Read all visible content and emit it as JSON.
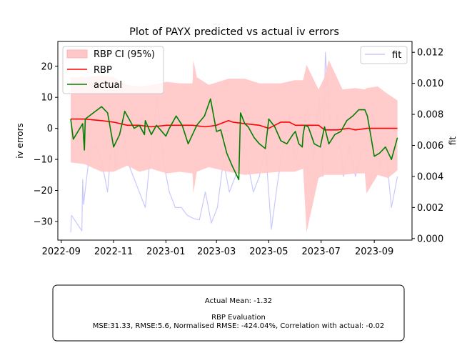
{
  "chart_data": {
    "type": "line",
    "title": "Plot of PAYX predicted vs actual iv errors",
    "xlabel": "",
    "ylabel": "iv errors",
    "y2label": "fit",
    "ylim": [
      -36,
      28
    ],
    "y2lim": [
      -0.0001,
      0.0127
    ],
    "xlim": [
      "2022-08-28",
      "2023-10-15"
    ],
    "x_ticks": [
      "2022-09",
      "2022-11",
      "2023-01",
      "2023-03",
      "2023-05",
      "2023-07",
      "2023-09"
    ],
    "x_tick_dates": [
      "2022-09-01",
      "2022-11-01",
      "2023-01-01",
      "2023-03-01",
      "2023-05-01",
      "2023-07-01",
      "2023-09-01"
    ],
    "y_ticks": [
      -30,
      -20,
      -10,
      0,
      10,
      20
    ],
    "y_tick_labels": [
      "−30",
      "−20",
      "−10",
      "0",
      "10",
      "20"
    ],
    "y2_ticks": [
      0.0,
      0.002,
      0.004,
      0.006,
      0.008,
      0.01,
      0.012
    ],
    "y2_tick_labels": [
      "0.000",
      "0.002",
      "0.004",
      "0.006",
      "0.008",
      "0.010",
      "0.012"
    ],
    "grid": false,
    "legend_left": {
      "placement": "top-left",
      "entries": [
        {
          "label": "RBP CI (95%)",
          "color": "#ffc8c8"
        },
        {
          "label": "RBP",
          "color": "#ff0000"
        },
        {
          "label": "actual",
          "color": "#008000"
        }
      ]
    },
    "legend_right": {
      "placement": "top-right",
      "entries": [
        {
          "label": "fit",
          "color": "#c8c8ff"
        }
      ]
    },
    "series": [
      {
        "name": "RBP CI (95%)",
        "kind": "band",
        "color": "#ffc8c8",
        "x": [
          "2022-09-12",
          "2022-09-28",
          "2022-10-18",
          "2022-11-01",
          "2022-11-17",
          "2022-12-01",
          "2022-12-15",
          "2023-01-02",
          "2023-01-17",
          "2023-02-01",
          "2023-02-02",
          "2023-02-06",
          "2023-02-20",
          "2023-03-15",
          "2023-04-03",
          "2023-04-20",
          "2023-05-15",
          "2023-05-31",
          "2023-06-10",
          "2023-06-14",
          "2023-06-28",
          "2023-07-05",
          "2023-07-10",
          "2023-07-26",
          "2023-08-10",
          "2023-08-21",
          "2023-08-23",
          "2023-09-05",
          "2023-09-17",
          "2023-09-28"
        ],
        "upper": [
          16.3,
          16.5,
          17.0,
          16.5,
          14.0,
          13.5,
          14.0,
          15.0,
          14.5,
          14.5,
          22.0,
          16.5,
          14.0,
          16.0,
          16.0,
          14.5,
          14.5,
          15.5,
          15.5,
          20.5,
          12.5,
          16.5,
          22.0,
          12.5,
          13.0,
          12.5,
          13.0,
          13.5,
          11.0,
          9.0
        ],
        "lower": [
          -11.0,
          -11.5,
          -14.0,
          -14.0,
          -12.0,
          -14.0,
          -13.0,
          -14.5,
          -14.0,
          -14.5,
          -21.0,
          -14.0,
          -12.5,
          -14.0,
          -15.0,
          -14.5,
          -14.0,
          -14.0,
          -13.0,
          -33.5,
          -16.0,
          -15.0,
          -15.0,
          -15.0,
          -14.5,
          -14.5,
          -21.0,
          -15.0,
          -16.0,
          -13.5
        ]
      },
      {
        "name": "RBP",
        "kind": "line",
        "color": "#ff0000",
        "x": [
          "2022-09-12",
          "2022-09-28",
          "2022-10-18",
          "2022-11-01",
          "2022-11-17",
          "2022-12-01",
          "2022-12-15",
          "2023-01-02",
          "2023-01-17",
          "2023-02-01",
          "2023-02-16",
          "2023-03-01",
          "2023-03-15",
          "2023-03-20",
          "2023-04-03",
          "2023-04-20",
          "2023-05-01",
          "2023-05-15",
          "2023-05-25",
          "2023-06-01",
          "2023-06-10",
          "2023-06-28",
          "2023-07-05",
          "2023-07-20",
          "2023-08-02",
          "2023-08-10",
          "2023-08-24",
          "2023-09-05",
          "2023-09-17",
          "2023-09-28"
        ],
        "values": [
          3.0,
          3.0,
          2.5,
          2.0,
          1.0,
          1.0,
          0.5,
          1.0,
          1.0,
          1.0,
          0.5,
          1.0,
          2.5,
          2.0,
          1.5,
          1.0,
          0.0,
          2.0,
          2.0,
          1.0,
          1.0,
          1.0,
          -0.5,
          -0.5,
          0.0,
          -0.5,
          0.0,
          0.0,
          0.0,
          0.0
        ]
      },
      {
        "name": "actual",
        "kind": "line",
        "color": "#008000",
        "x": [
          "2022-09-12",
          "2022-09-15",
          "2022-09-26",
          "2022-09-28",
          "2022-09-29",
          "2022-10-18",
          "2022-10-25",
          "2022-11-01",
          "2022-11-08",
          "2022-11-14",
          "2022-11-18",
          "2022-11-25",
          "2022-12-01",
          "2022-12-07",
          "2022-12-08",
          "2022-12-15",
          "2022-12-21",
          "2023-01-01",
          "2023-01-05",
          "2023-01-13",
          "2023-01-20",
          "2023-01-27",
          "2023-02-06",
          "2023-02-15",
          "2023-02-22",
          "2023-03-01",
          "2023-03-06",
          "2023-03-13",
          "2023-03-20",
          "2023-03-27",
          "2023-03-29",
          "2023-04-03",
          "2023-04-07",
          "2023-04-14",
          "2023-04-20",
          "2023-04-27",
          "2023-05-01",
          "2023-05-08",
          "2023-05-15",
          "2023-05-22",
          "2023-05-29",
          "2023-06-01",
          "2023-06-05",
          "2023-06-09",
          "2023-06-10",
          "2023-06-12",
          "2023-06-16",
          "2023-06-23",
          "2023-06-30",
          "2023-07-05",
          "2023-07-10",
          "2023-07-17",
          "2023-07-24",
          "2023-07-31",
          "2023-08-07",
          "2023-08-14",
          "2023-08-21",
          "2023-08-24",
          "2023-09-01",
          "2023-09-07",
          "2023-09-14",
          "2023-09-21",
          "2023-09-28"
        ],
        "values": [
          3.0,
          -3.5,
          1.5,
          -7.0,
          3.0,
          7.0,
          5.0,
          -6.0,
          -2.0,
          5.5,
          3.5,
          0.0,
          1.0,
          -2.0,
          2.5,
          -2.0,
          1.0,
          -2.5,
          0.0,
          4.0,
          1.0,
          -5.0,
          1.0,
          4.0,
          9.5,
          -1.0,
          -0.5,
          -8.0,
          -12.5,
          -16.5,
          5.0,
          1.5,
          0.5,
          -3.0,
          -5.0,
          -6.5,
          3.0,
          0.5,
          -4.0,
          -5.0,
          -2.0,
          -1.0,
          -5.0,
          -6.0,
          -2.0,
          1.0,
          0.5,
          -5.0,
          -6.0,
          0.5,
          -5.0,
          -2.0,
          -1.0,
          2.5,
          4.0,
          6.0,
          6.0,
          4.0,
          -9.0,
          -8.0,
          -6.0,
          -10.0,
          -3.0
        ]
      },
      {
        "name": "fit",
        "kind": "line",
        "axis": "right",
        "color": "#c8c8ff",
        "x": [
          "2022-09-12",
          "2022-09-13",
          "2022-09-25",
          "2022-09-26",
          "2022-09-27",
          "2022-10-04",
          "2022-10-11",
          "2022-10-18",
          "2022-10-25",
          "2022-11-01",
          "2022-11-03",
          "2022-11-10",
          "2022-11-17",
          "2022-11-24",
          "2022-12-01",
          "2022-12-08",
          "2022-12-15",
          "2022-12-22",
          "2022-12-29",
          "2023-01-05",
          "2023-01-12",
          "2023-01-19",
          "2023-01-26",
          "2023-02-02",
          "2023-02-09",
          "2023-02-16",
          "2023-02-23",
          "2023-03-02",
          "2023-03-09",
          "2023-03-16",
          "2023-03-23",
          "2023-03-30",
          "2023-04-06",
          "2023-04-13",
          "2023-04-20",
          "2023-04-27",
          "2023-05-04",
          "2023-05-11",
          "2023-05-18",
          "2023-05-25",
          "2023-06-01",
          "2023-06-08",
          "2023-06-15",
          "2023-06-22",
          "2023-06-29",
          "2023-07-03",
          "2023-07-06",
          "2023-07-13",
          "2023-07-20",
          "2023-07-27",
          "2023-08-03",
          "2023-08-10",
          "2023-08-17",
          "2023-08-24",
          "2023-08-31",
          "2023-09-07",
          "2023-09-14",
          "2023-09-21",
          "2023-09-28"
        ],
        "values": [
          0.0004,
          0.0015,
          0.0005,
          0.0038,
          0.0022,
          0.0055,
          0.006,
          0.005,
          0.003,
          0.008,
          0.0045,
          0.0075,
          0.005,
          0.004,
          0.003,
          0.002,
          0.006,
          0.009,
          0.005,
          0.003,
          0.002,
          0.002,
          0.0015,
          0.0013,
          0.0012,
          0.003,
          0.001,
          0.002,
          0.005,
          0.003,
          0.004,
          0.006,
          0.005,
          0.003,
          0.004,
          0.006,
          0.0006,
          0.0035,
          0.006,
          0.008,
          0.005,
          0.007,
          0.0085,
          0.005,
          0.009,
          0.004,
          0.012,
          0.006,
          0.008,
          0.004,
          0.006,
          0.004,
          0.0055,
          0.006,
          0.008,
          0.0045,
          0.006,
          0.002,
          0.004
        ]
      }
    ]
  },
  "evaluation": {
    "actual_mean": "Actual Mean: -1.32",
    "heading": "RBP Evaluation",
    "metrics": "MSE:31.33, RMSE:5.6, Normalised RMSE: -424.04%, Correlation with actual: -0.02"
  }
}
